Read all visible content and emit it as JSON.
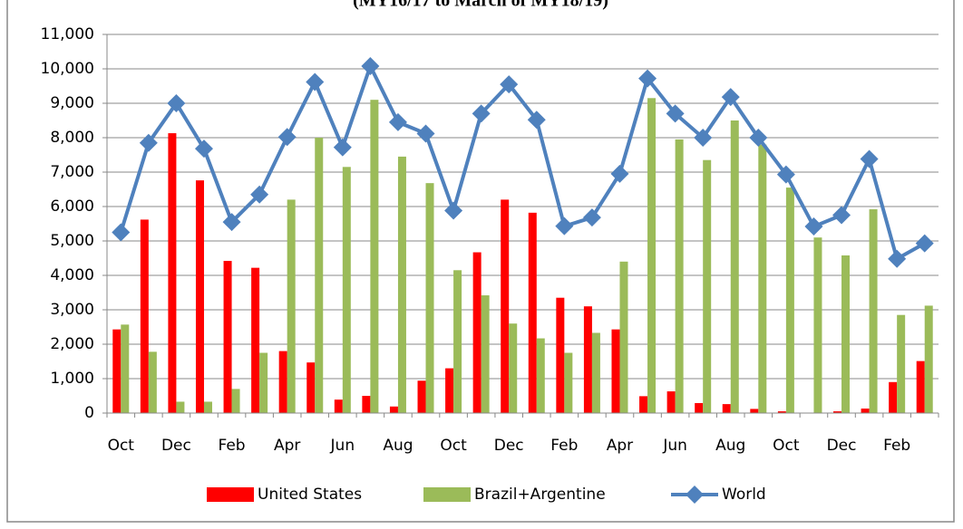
{
  "chart_data": {
    "type": "bar_line",
    "title": "(MY16/17 to March of MY18/19)",
    "categories": [
      "Oct",
      null,
      "Dec",
      null,
      "Feb",
      null,
      "Apr",
      null,
      "Jun",
      null,
      "Aug",
      null,
      "Oct",
      null,
      "Dec",
      null,
      "Feb",
      null,
      "Apr",
      null,
      "Jun",
      null,
      "Aug",
      null,
      "Oct",
      null,
      "Dec",
      null,
      "Feb",
      null
    ],
    "series": [
      {
        "name": "United States",
        "type": "bar",
        "color": "#ff0000",
        "values": [
          2430,
          5620,
          8130,
          6760,
          4420,
          4220,
          1800,
          1470,
          390,
          500,
          190,
          940,
          1300,
          4670,
          6200,
          5820,
          3350,
          3100,
          2430,
          490,
          630,
          290,
          260,
          120,
          50,
          0,
          50,
          130,
          900,
          1510
        ]
      },
      {
        "name": "Brazil+Argentine",
        "type": "bar",
        "color": "#9bbb59",
        "values": [
          2570,
          1780,
          330,
          330,
          700,
          1750,
          6200,
          8000,
          7150,
          9100,
          7450,
          6680,
          4150,
          3420,
          2600,
          2170,
          1750,
          2330,
          4400,
          9150,
          7950,
          7350,
          8500,
          7800,
          6550,
          5100,
          4580,
          5920,
          2850,
          3120
        ]
      },
      {
        "name": "World",
        "type": "line",
        "color": "#4f81bd",
        "values": [
          5250,
          7850,
          9000,
          7680,
          5550,
          6350,
          8020,
          9620,
          7720,
          10080,
          8450,
          8120,
          5880,
          8700,
          9550,
          8520,
          5430,
          5680,
          6950,
          9720,
          8700,
          8000,
          9180,
          8000,
          6930,
          5420,
          5750,
          7380,
          4480,
          4930
        ]
      }
    ],
    "ylim": [
      0,
      11000
    ],
    "yticks": [
      0,
      {
        "value": 1000,
        "label": "1,000"
      },
      {
        "value": 2000,
        "label": "2,000"
      },
      {
        "value": 3000,
        "label": "3,000"
      },
      {
        "value": 4000,
        "label": "4,000"
      },
      {
        "value": 5000,
        "label": "5,000"
      },
      {
        "value": 6000,
        "label": "6,000"
      },
      {
        "value": 7000,
        "label": "7,000"
      },
      {
        "value": 8000,
        "label": "8,000"
      },
      {
        "value": 9000,
        "label": "9,000"
      },
      {
        "value": 10000,
        "label": "10,000"
      },
      {
        "value": 11000,
        "label": "11,000"
      }
    ],
    "grid": true,
    "legend": "bottom"
  }
}
